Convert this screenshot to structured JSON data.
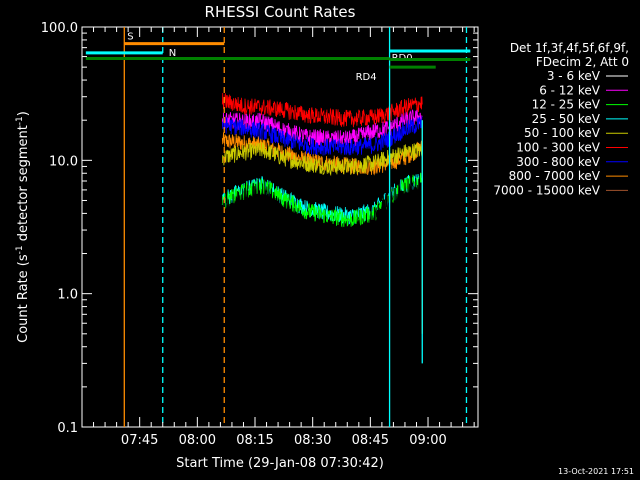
{
  "chart_data": {
    "type": "line",
    "title": "RHESSI Count Rates",
    "xlabel": "Start Time (29-Jan-08 07:30:42)",
    "ylabel_main": "Count Rate (s",
    "ylabel_sup1": "-1",
    "ylabel_mid": " detector segment",
    "ylabel_sup2": "-1",
    "ylabel_end": ")",
    "x_range_minutes": [
      "07:30",
      "09:10"
    ],
    "yscale": "log",
    "ylim": [
      0.1,
      100
    ],
    "x_ticks": [
      {
        "label": "07:45",
        "minute": 465
      },
      {
        "label": "08:00",
        "minute": 480
      },
      {
        "label": "08:15",
        "minute": 495
      },
      {
        "label": "08:30",
        "minute": 510
      },
      {
        "label": "08:45",
        "minute": 525
      },
      {
        "label": "09:00",
        "minute": 540
      }
    ],
    "y_ticks": [
      {
        "label": "100.0",
        "value": 100
      },
      {
        "label": "10.0",
        "value": 10
      },
      {
        "label": "1.0",
        "value": 1
      },
      {
        "label": "0.1",
        "value": 0.1
      }
    ],
    "legend": {
      "header1": "Det 1f,3f,4f,5f,6f,9f,",
      "header2": "FDecim 2, Att 0",
      "entries": [
        {
          "label": "3 - 6 keV",
          "color": "#000000"
        },
        {
          "label": "6 - 12 keV",
          "color": "#ff00ff"
        },
        {
          "label": "12 - 25 keV",
          "color": "#00ff00"
        },
        {
          "label": "25 - 50 keV",
          "color": "#00ffff"
        },
        {
          "label": "50 - 100 keV",
          "color": "#cccc00"
        },
        {
          "label": "100 - 300 keV",
          "color": "#ff0000"
        },
        {
          "label": "300 - 800 keV",
          "color": "#0000ff"
        },
        {
          "label": "800 - 7000 keV",
          "color": "#ff8c00"
        },
        {
          "label": "7000 - 15000 keV",
          "color": "#a0522d"
        }
      ]
    },
    "data_window_minutes": [
      486.5,
      538.5
    ],
    "series": [
      {
        "name": "3 - 6 keV",
        "color": "#000000",
        "points": [
          [
            486.5,
            3.6
          ],
          [
            492,
            4.6
          ],
          [
            497,
            5.3
          ],
          [
            502,
            4.0
          ],
          [
            508,
            2.8
          ],
          [
            514,
            2.5
          ],
          [
            520,
            2.3
          ],
          [
            526,
            3.2
          ],
          [
            530,
            4.5
          ],
          [
            534,
            5.3
          ],
          [
            538.5,
            5.8
          ]
        ]
      },
      {
        "name": "6 - 12 keV",
        "color": "#ff00ff",
        "points": [
          [
            486.5,
            20.0
          ],
          [
            492,
            19.5
          ],
          [
            497,
            19.5
          ],
          [
            502,
            17.0
          ],
          [
            508,
            15.0
          ],
          [
            514,
            14.5
          ],
          [
            520,
            14.5
          ],
          [
            526,
            16.5
          ],
          [
            530,
            17.5
          ],
          [
            534,
            20.0
          ],
          [
            538.5,
            21.5
          ]
        ]
      },
      {
        "name": "12 - 25 keV",
        "color": "#00ff00",
        "points": [
          [
            486.5,
            4.8
          ],
          [
            492,
            5.8
          ],
          [
            497,
            6.5
          ],
          [
            502,
            5.2
          ],
          [
            508,
            4.2
          ],
          [
            514,
            3.8
          ],
          [
            520,
            3.6
          ],
          [
            526,
            4.0
          ],
          [
            530,
            5.2
          ],
          [
            534,
            6.5
          ],
          [
            538.5,
            7.0
          ]
        ]
      },
      {
        "name": "25 - 50 keV",
        "color": "#00ffff",
        "points": [
          [
            486.5,
            5.0
          ],
          [
            492,
            6.0
          ],
          [
            497,
            6.6
          ],
          [
            502,
            5.4
          ],
          [
            508,
            4.4
          ],
          [
            514,
            4.0
          ],
          [
            520,
            3.8
          ],
          [
            526,
            4.2
          ],
          [
            530,
            5.4
          ],
          [
            534,
            6.6
          ],
          [
            538.5,
            7.2
          ]
        ]
      },
      {
        "name": "50 - 100 keV",
        "color": "#cccc00",
        "points": [
          [
            486.5,
            10.5
          ],
          [
            492,
            11.5
          ],
          [
            497,
            12.0
          ],
          [
            502,
            10.5
          ],
          [
            508,
            9.5
          ],
          [
            514,
            9.0
          ],
          [
            520,
            9.0
          ],
          [
            526,
            9.5
          ],
          [
            530,
            10.5
          ],
          [
            534,
            11.5
          ],
          [
            538.5,
            12.0
          ]
        ]
      },
      {
        "name": "100 - 300 keV",
        "color": "#ff0000",
        "points": [
          [
            486.5,
            28.0
          ],
          [
            492,
            25.5
          ],
          [
            497,
            25.0
          ],
          [
            502,
            24.0
          ],
          [
            508,
            22.0
          ],
          [
            514,
            21.0
          ],
          [
            520,
            20.5
          ],
          [
            526,
            21.0
          ],
          [
            530,
            22.5
          ],
          [
            534,
            25.0
          ],
          [
            538.5,
            27.0
          ]
        ]
      },
      {
        "name": "300 - 800 keV",
        "color": "#0000ff",
        "points": [
          [
            486.5,
            18.5
          ],
          [
            492,
            17.5
          ],
          [
            497,
            16.5
          ],
          [
            502,
            14.5
          ],
          [
            508,
            13.0
          ],
          [
            514,
            12.5
          ],
          [
            520,
            12.5
          ],
          [
            526,
            13.0
          ],
          [
            530,
            14.5
          ],
          [
            534,
            17.0
          ],
          [
            538.5,
            19.0
          ]
        ]
      },
      {
        "name": "800 - 7000 keV",
        "color": "#ff8c00",
        "points": [
          [
            486.5,
            14.0
          ],
          [
            492,
            13.5
          ],
          [
            497,
            13.0
          ],
          [
            502,
            11.5
          ],
          [
            508,
            10.0
          ],
          [
            514,
            9.5
          ],
          [
            520,
            9.0
          ],
          [
            526,
            9.0
          ],
          [
            530,
            9.5
          ],
          [
            534,
            10.5
          ],
          [
            538.5,
            12.5
          ]
        ]
      }
    ],
    "vertical_markers": [
      {
        "minute": 471,
        "color": "#00ffff",
        "style": "dashed"
      },
      {
        "minute": 461,
        "color": "#ff8c00",
        "style": "solid"
      },
      {
        "minute": 487,
        "color": "#ff8c00",
        "style": "dashed"
      },
      {
        "minute": 530,
        "color": "#00ffff",
        "style": "solid"
      },
      {
        "minute": 538.5,
        "color": "#ff8c00",
        "style": "solid"
      },
      {
        "minute": 538.5,
        "color": "#00ffff",
        "style": "solid"
      },
      {
        "minute": 550,
        "color": "#00ffff",
        "style": "dashed"
      }
    ],
    "horizontal_bars": [
      {
        "label": "S",
        "color": "#ff8c00",
        "minute_start": 461,
        "minute_end": 487,
        "value": 75
      },
      {
        "label": "N",
        "color": "#00ffff",
        "minute_start": 451,
        "minute_end": 471,
        "value": 64
      },
      {
        "label": "",
        "color": "#008000",
        "minute_start": 451,
        "minute_end": 530,
        "value": 58
      },
      {
        "label": "RD0",
        "color": "#00ffff",
        "minute_start": 530,
        "minute_end": 551,
        "value": 66
      },
      {
        "label": "",
        "color": "#008000",
        "minute_start": 530,
        "minute_end": 551,
        "value": 57
      },
      {
        "label": "RD4",
        "color": "#008000",
        "minute_start": 530,
        "minute_end": 542,
        "value": 50
      }
    ]
  },
  "footer": {
    "timestamp": "13-Oct-2021 17:51"
  }
}
